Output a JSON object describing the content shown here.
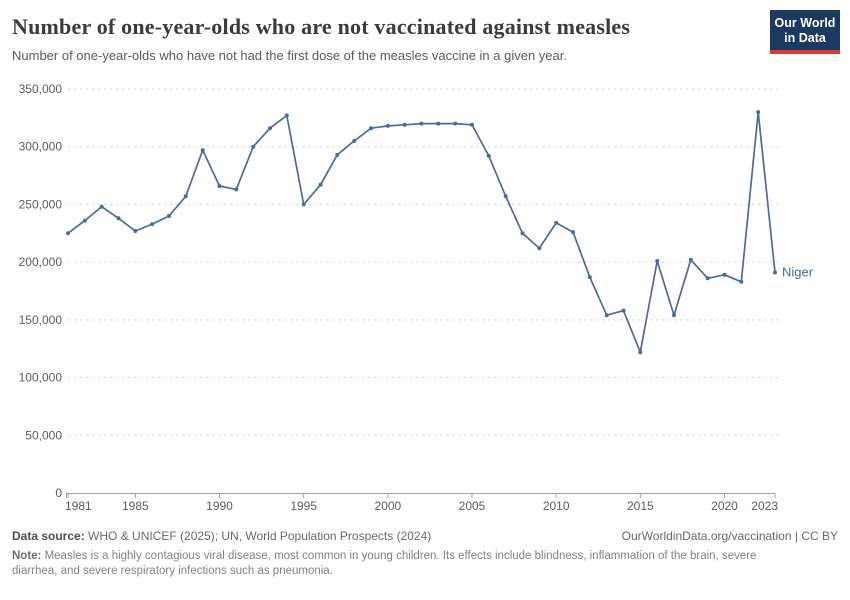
{
  "header": {
    "title": "Number of one-year-olds who are not vaccinated against measles",
    "subtitle": "Number of one-year-olds who have not had the first dose of the measles vaccine in a given year.",
    "logo": {
      "line1": "Our World",
      "line2": "in Data",
      "bg_color": "#1a3a5f",
      "accent_color": "#d93a34"
    }
  },
  "chart_data": {
    "type": "line",
    "title": "Number of one-year-olds who are not vaccinated against measles",
    "xlabel": "",
    "ylabel": "",
    "xlim": [
      1981,
      2023
    ],
    "ylim": [
      0,
      350000
    ],
    "grid": "horizontal-dashed",
    "legend_position": "end-of-line-label",
    "x_ticks": [
      1981,
      1985,
      1990,
      1995,
      2000,
      2005,
      2010,
      2015,
      2020,
      2023
    ],
    "y_ticks": [
      0,
      50000,
      100000,
      150000,
      200000,
      250000,
      300000,
      350000
    ],
    "end_label": "Niger",
    "colors": {
      "line": "#4c6a9c",
      "grid": "#d6d6d6",
      "axis": "#a3a3a3",
      "tick_text": "#5c5c5c"
    },
    "series": [
      {
        "name": "Niger",
        "color": "#4c6a9c",
        "x": [
          1981,
          1982,
          1983,
          1984,
          1985,
          1986,
          1987,
          1988,
          1989,
          1990,
          1991,
          1992,
          1993,
          1994,
          1995,
          1996,
          1997,
          1998,
          1999,
          2000,
          2001,
          2002,
          2003,
          2004,
          2005,
          2006,
          2007,
          2008,
          2009,
          2010,
          2011,
          2012,
          2013,
          2014,
          2015,
          2016,
          2017,
          2018,
          2019,
          2020,
          2021,
          2022,
          2023
        ],
        "values": [
          225000,
          236000,
          248000,
          238000,
          227000,
          233000,
          240000,
          257000,
          297000,
          266000,
          263000,
          300000,
          316000,
          327000,
          250000,
          267000,
          293000,
          305000,
          316000,
          318000,
          319000,
          320000,
          320000,
          320000,
          319000,
          292000,
          257000,
          225000,
          212000,
          234000,
          226000,
          187000,
          154000,
          158000,
          122000,
          201000,
          154000,
          202000,
          186000,
          189000,
          183000,
          330000,
          191000
        ]
      }
    ]
  },
  "footer": {
    "data_source_label": "Data source:",
    "data_source": " WHO & UNICEF (2025); UN, World Population Prospects (2024)",
    "rights": "OurWorldinData.org/vaccination | CC BY",
    "note_label": "Note:",
    "note": " Measles is a highly contagious viral disease, most common in young children. Its effects include blindness, inflammation of the brain, severe diarrhea, and severe respiratory infections such as pneumonia."
  }
}
